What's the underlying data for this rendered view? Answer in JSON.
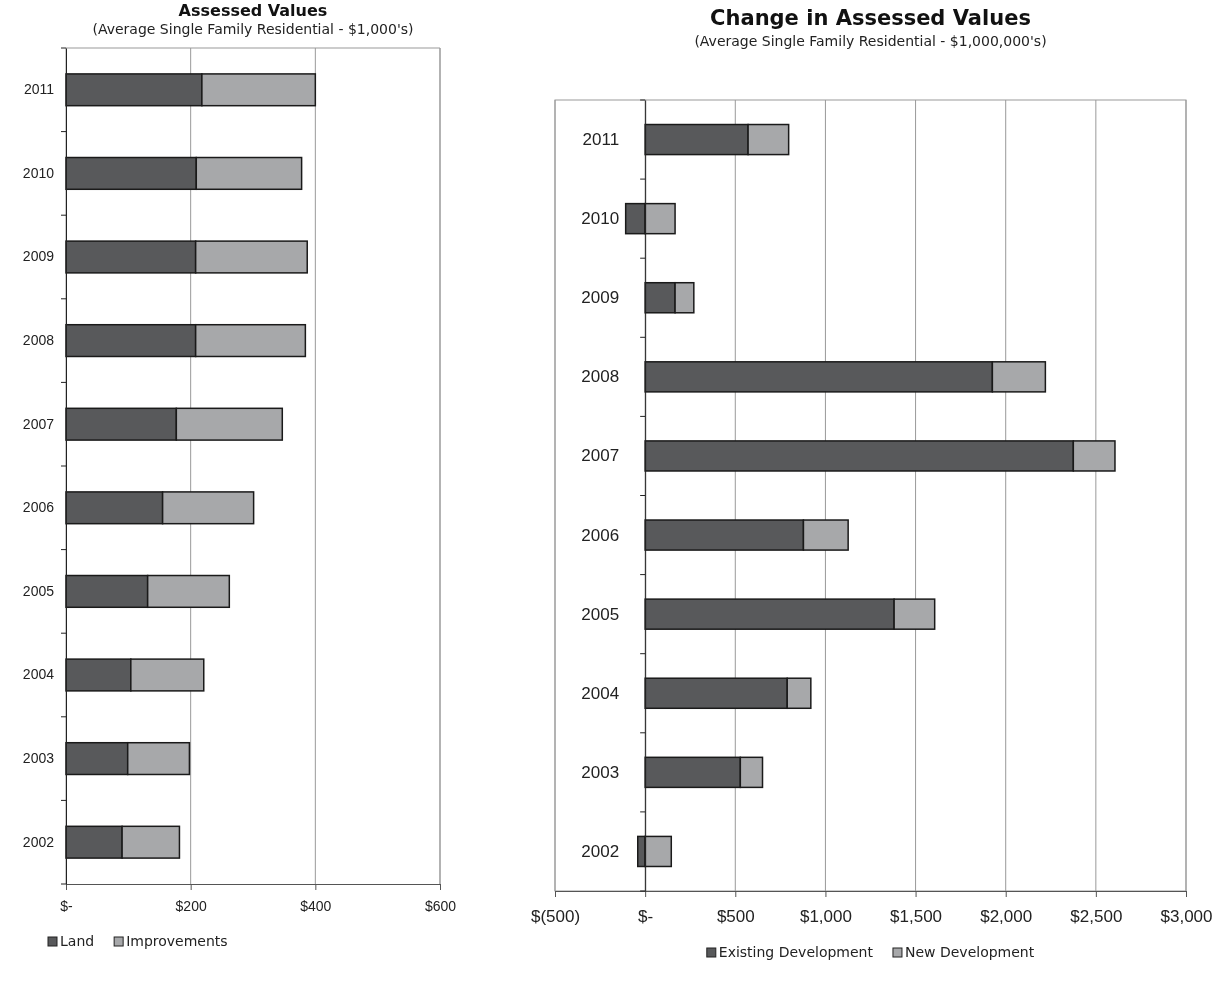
{
  "chart_data": [
    {
      "type": "bar",
      "orientation": "horizontal",
      "stacked": true,
      "title": "Assessed Values",
      "subtitle": "(Average Single Family Residential - $1,000's)",
      "categories": [
        "2011",
        "2010",
        "2009",
        "2008",
        "2007",
        "2006",
        "2005",
        "2004",
        "2003",
        "2002"
      ],
      "series": [
        {
          "name": "Land",
          "color": "#58595b",
          "values": [
            218,
            209,
            208,
            208,
            177,
            155,
            131,
            104,
            99,
            90
          ]
        },
        {
          "name": "Improvements",
          "color": "#a7a8aa",
          "values": [
            182,
            169,
            179,
            176,
            170,
            146,
            131,
            117,
            99,
            92
          ]
        }
      ],
      "xlim": [
        0,
        600
      ],
      "xticks": [
        {
          "value": 0,
          "label": "$-"
        },
        {
          "value": 200,
          "label": "$200"
        },
        {
          "value": 400,
          "label": "$400"
        },
        {
          "value": 600,
          "label": "$600"
        }
      ],
      "grid": "x",
      "legend": "bottom left"
    },
    {
      "type": "bar",
      "orientation": "horizontal",
      "stacked": true,
      "title": "Change in Assessed Values",
      "subtitle": "(Average Single Family Residential - $1,000,000's)",
      "categories": [
        "2011",
        "2010",
        "2009",
        "2008",
        "2007",
        "2006",
        "2005",
        "2004",
        "2003",
        "2002"
      ],
      "series": [
        {
          "name": "Existing Development",
          "color": "#58595b",
          "values": [
            571,
            -108,
            166,
            1926,
            2375,
            878,
            1381,
            788,
            528,
            -41
          ]
        },
        {
          "name": "New Development",
          "color": "#a7a8aa",
          "values": [
            225,
            166,
            104,
            294,
            231,
            248,
            225,
            131,
            123,
            145
          ]
        }
      ],
      "xlim": [
        -500,
        3000
      ],
      "xticks": [
        {
          "value": -500,
          "label": "$(500)"
        },
        {
          "value": 0,
          "label": "$-"
        },
        {
          "value": 500,
          "label": "$500"
        },
        {
          "value": 1000,
          "label": "$1,000"
        },
        {
          "value": 1500,
          "label": "$1,500"
        },
        {
          "value": 2000,
          "label": "$2,000"
        },
        {
          "value": 2500,
          "label": "$2,500"
        },
        {
          "value": 3000,
          "label": "$3,000"
        }
      ],
      "grid": "x",
      "legend": "bottom"
    }
  ]
}
